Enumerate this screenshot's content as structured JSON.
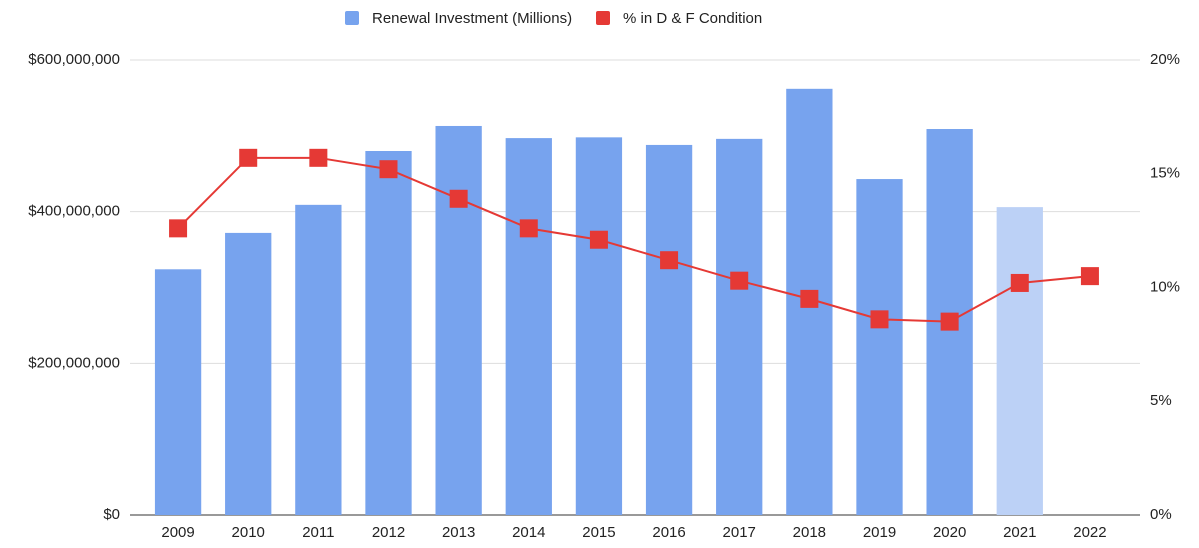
{
  "chart_data": {
    "type": "combo",
    "categories": [
      "2009",
      "2010",
      "2011",
      "2012",
      "2013",
      "2014",
      "2015",
      "2016",
      "2017",
      "2018",
      "2019",
      "2020",
      "2021",
      "2022"
    ],
    "series": [
      {
        "name": "Renewal Investment (Millions)",
        "type": "bar",
        "axis": "y",
        "color": "#77a3ee",
        "colors": [
          "#77a3ee",
          "#77a3ee",
          "#77a3ee",
          "#77a3ee",
          "#77a3ee",
          "#77a3ee",
          "#77a3ee",
          "#77a3ee",
          "#77a3ee",
          "#77a3ee",
          "#77a3ee",
          "#77a3ee",
          "#bcd1f6",
          "#77a3ee"
        ],
        "values": [
          324000000,
          372000000,
          409000000,
          480000000,
          513000000,
          497000000,
          498000000,
          488000000,
          496000000,
          562000000,
          443000000,
          509000000,
          406000000,
          null
        ]
      },
      {
        "name": "% in D & F Condition",
        "type": "line",
        "axis": "y2",
        "color": "#e53935",
        "values": [
          12.6,
          15.7,
          15.7,
          15.2,
          13.9,
          12.6,
          12.1,
          11.2,
          10.3,
          9.5,
          8.6,
          8.5,
          10.2,
          10.5
        ]
      }
    ],
    "ylim": [
      0,
      600000000
    ],
    "yticks": [
      {
        "value": 0,
        "label": "$0"
      },
      {
        "value": 200000000,
        "label": "$200,000,000"
      },
      {
        "value": 400000000,
        "label": "$400,000,000"
      },
      {
        "value": 600000000,
        "label": "$600,000,000"
      }
    ],
    "y2lim": [
      0,
      20
    ],
    "y2ticks": [
      {
        "value": 0,
        "label": "0%"
      },
      {
        "value": 5,
        "label": "5%"
      },
      {
        "value": 10,
        "label": "10%"
      },
      {
        "value": 15,
        "label": "15%"
      },
      {
        "value": 20,
        "label": "20%"
      }
    ],
    "grid": true,
    "legend": "top"
  }
}
